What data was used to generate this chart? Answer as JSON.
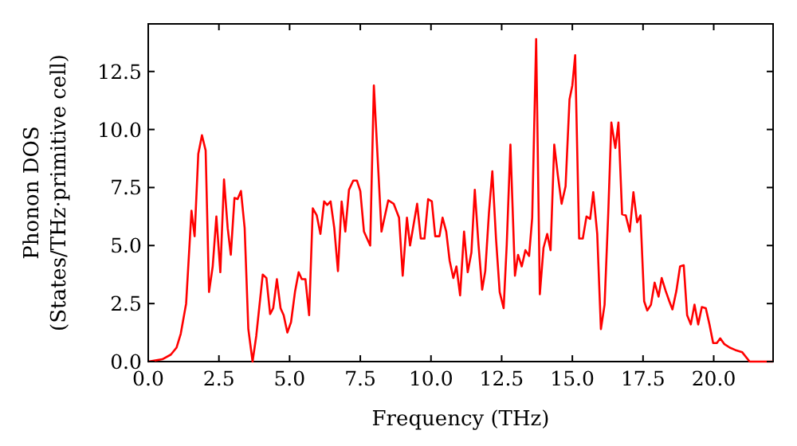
{
  "chart_data": {
    "type": "line",
    "xlabel": "Frequency (THz)",
    "ylabel": "Phonon DOS\n(States/THz·primitive cell)",
    "xlim": [
      0,
      22.1
    ],
    "ylim": [
      0,
      14.55
    ],
    "xticks": [
      {
        "value": 0,
        "label": "0.0"
      },
      {
        "value": 2.5,
        "label": "2.5"
      },
      {
        "value": 5,
        "label": "5.0"
      },
      {
        "value": 7.5,
        "label": "7.5"
      },
      {
        "value": 10,
        "label": "10.0"
      },
      {
        "value": 12.5,
        "label": "12.5"
      },
      {
        "value": 15,
        "label": "15.0"
      },
      {
        "value": 17.5,
        "label": "17.5"
      },
      {
        "value": 20,
        "label": "20.0"
      }
    ],
    "yticks": [
      {
        "value": 0,
        "label": "0.0"
      },
      {
        "value": 2.5,
        "label": "2.5"
      },
      {
        "value": 5,
        "label": "5.0"
      },
      {
        "value": 7.5,
        "label": "7.5"
      },
      {
        "value": 10,
        "label": "10.0"
      },
      {
        "value": 12.5,
        "label": "12.5"
      }
    ],
    "grid": false,
    "marker": "none",
    "line_style": "solid",
    "series": [
      {
        "color": "#ff0000",
        "x": [
          0,
          0.5,
          0.8,
          1.0,
          1.15,
          1.34,
          1.53,
          1.64,
          1.77,
          1.9,
          2.03,
          2.15,
          2.28,
          2.41,
          2.55,
          2.68,
          2.81,
          2.92,
          3.05,
          3.16,
          3.28,
          3.41,
          3.54,
          3.69,
          3.82,
          4.05,
          4.18,
          4.31,
          4.42,
          4.55,
          4.68,
          4.79,
          4.92,
          5.05,
          5.19,
          5.32,
          5.43,
          5.56,
          5.69,
          5.82,
          5.96,
          6.09,
          6.22,
          6.33,
          6.45,
          6.58,
          6.71,
          6.84,
          6.97,
          7.1,
          7.25,
          7.38,
          7.5,
          7.63,
          7.85,
          7.98,
          8.25,
          8.49,
          8.68,
          8.87,
          9.0,
          9.15,
          9.26,
          9.51,
          9.64,
          9.77,
          9.9,
          10.03,
          10.15,
          10.3,
          10.41,
          10.54,
          10.66,
          10.79,
          10.9,
          11.03,
          11.17,
          11.3,
          11.43,
          11.55,
          11.68,
          11.81,
          11.92,
          12.05,
          12.17,
          12.3,
          12.43,
          12.57,
          12.68,
          12.81,
          12.97,
          13.08,
          13.21,
          13.34,
          13.47,
          13.58,
          13.72,
          13.85,
          13.98,
          14.11,
          14.23,
          14.36,
          14.49,
          14.62,
          14.76,
          14.9,
          15.0,
          15.1,
          15.24,
          15.37,
          15.5,
          15.63,
          15.74,
          15.88,
          16.01,
          16.14,
          16.27,
          16.38,
          16.52,
          16.63,
          16.76,
          16.89,
          17.03,
          17.16,
          17.29,
          17.41,
          17.54,
          17.65,
          17.78,
          17.91,
          18.05,
          18.16,
          18.3,
          18.43,
          18.54,
          18.68,
          18.81,
          18.94,
          19.06,
          19.19,
          19.32,
          19.45,
          19.58,
          19.72,
          19.85,
          19.98,
          20.11,
          20.23,
          20.38,
          20.57,
          20.76,
          21.01,
          21.27,
          22.1
        ],
        "values": [
          0,
          0.1,
          0.3,
          0.6,
          1.2,
          2.5,
          6.5,
          5.4,
          8.95,
          9.75,
          9.1,
          3.0,
          4.1,
          6.25,
          3.85,
          7.85,
          5.75,
          4.6,
          7.05,
          7.0,
          7.35,
          5.75,
          1.4,
          0,
          1.1,
          3.75,
          3.6,
          2.05,
          2.3,
          3.55,
          2.3,
          2.0,
          1.25,
          1.7,
          3.0,
          3.85,
          3.55,
          3.55,
          2.0,
          6.6,
          6.3,
          5.5,
          6.9,
          6.75,
          6.9,
          5.75,
          3.9,
          6.9,
          5.6,
          7.4,
          7.8,
          7.8,
          7.35,
          5.6,
          5.0,
          11.9,
          5.6,
          6.95,
          6.8,
          6.2,
          3.7,
          6.2,
          5.0,
          6.8,
          5.3,
          5.3,
          7.0,
          6.9,
          5.4,
          5.4,
          6.2,
          5.6,
          4.35,
          3.6,
          4.1,
          2.85,
          5.6,
          3.85,
          4.7,
          7.4,
          5.05,
          3.1,
          3.9,
          6.4,
          8.2,
          5.3,
          3.0,
          2.3,
          5.05,
          9.35,
          3.7,
          4.6,
          4.1,
          4.8,
          4.55,
          6.2,
          13.9,
          2.9,
          4.9,
          5.5,
          4.8,
          9.35,
          8.0,
          6.8,
          7.55,
          11.3,
          11.9,
          13.2,
          5.3,
          5.3,
          6.25,
          6.15,
          7.3,
          5.5,
          1.4,
          2.45,
          6.4,
          10.3,
          9.2,
          10.3,
          6.35,
          6.3,
          5.6,
          7.3,
          6.0,
          6.3,
          2.6,
          2.2,
          2.45,
          3.4,
          2.8,
          3.6,
          3.05,
          2.6,
          2.25,
          3.05,
          4.1,
          4.15,
          2.0,
          1.6,
          2.45,
          1.6,
          2.35,
          2.3,
          1.6,
          0.8,
          0.8,
          1.0,
          0.75,
          0.6,
          0.5,
          0.4,
          0,
          0
        ]
      }
    ]
  }
}
